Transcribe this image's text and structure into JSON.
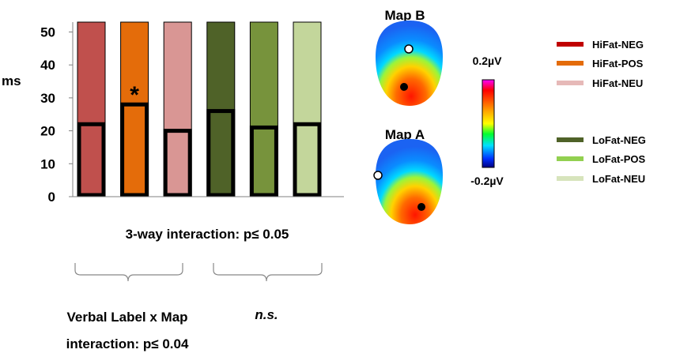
{
  "chart_data": {
    "type": "bar",
    "ylabel": "ms",
    "ylim": [
      0,
      53
    ],
    "yticks": [
      0,
      10,
      20,
      30,
      40,
      50
    ],
    "categories": [
      "HiFat-NEG",
      "HiFat-POS",
      "HiFat-NEU",
      "LoFat-NEG",
      "LoFat-POS",
      "LoFat-NEU"
    ],
    "series": [
      {
        "name": "Map B",
        "values": [
          53,
          53,
          53,
          53,
          53,
          53
        ]
      },
      {
        "name": "Map A",
        "values": [
          22,
          28,
          20,
          26,
          21,
          22
        ]
      }
    ],
    "bar_colors": [
      "#c0504d",
      "#e46c0a",
      "#d99694",
      "#4f6228",
      "#77933c",
      "#c3d69b"
    ],
    "significance_marker": {
      "category": "HiFat-POS",
      "text": "*"
    },
    "grid": false,
    "legend_position": "right"
  },
  "annotations": {
    "three_way": "3-way interaction: p≤ 0.05",
    "verbal_line1": "Verbal Label x Map",
    "verbal_line2": "interaction: p≤ 0.04",
    "ns": "n.s."
  },
  "maps": {
    "map_b_title": "Map B",
    "map_a_title": "Map A"
  },
  "color_scale": {
    "max_label": "0.2µV",
    "min_label": "-0.2µV"
  },
  "legend": {
    "items": [
      {
        "label": "HiFat-NEG",
        "color": "#c00000"
      },
      {
        "label": "HiFat-POS",
        "color": "#e46c0a"
      },
      {
        "label": "HiFat-NEU",
        "color": "#e6b9b8"
      },
      {
        "label": "LoFat-NEG",
        "color": "#4f6228"
      },
      {
        "label": "LoFat-POS",
        "color": "#92d050"
      },
      {
        "label": "LoFat-NEU",
        "color": "#d7e4bc"
      }
    ]
  }
}
